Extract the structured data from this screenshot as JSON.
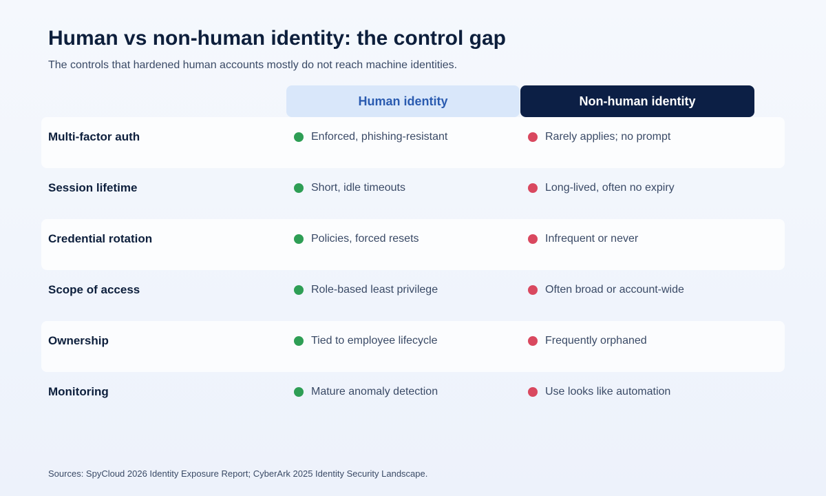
{
  "title": "Human vs non-human identity: the control gap",
  "subtitle": "The controls that hardened human accounts mostly do not reach machine identities.",
  "columns": {
    "human": "Human identity",
    "nonhuman": "Non-human identity"
  },
  "colors": {
    "good_dot": "#2e9e55",
    "bad_dot": "#d9485f",
    "human_header_bg": "#d9e7fa",
    "human_header_text": "#2a5bb0",
    "nonhuman_header_bg": "#0c1f45",
    "nonhuman_header_text": "#ffffff"
  },
  "rows": [
    {
      "label": "Multi-factor auth",
      "human": "Enforced, phishing-resistant",
      "nonhuman": "Rarely applies; no prompt"
    },
    {
      "label": "Session lifetime",
      "human": "Short, idle timeouts",
      "nonhuman": "Long-lived, often no expiry"
    },
    {
      "label": "Credential rotation",
      "human": "Policies, forced resets",
      "nonhuman": "Infrequent or never"
    },
    {
      "label": "Scope of access",
      "human": "Role-based least privilege",
      "nonhuman": "Often broad or account-wide"
    },
    {
      "label": "Ownership",
      "human": "Tied to employee lifecycle",
      "nonhuman": "Frequently orphaned"
    },
    {
      "label": "Monitoring",
      "human": "Mature anomaly detection",
      "nonhuman": "Use looks like automation"
    }
  ],
  "sources": "Sources: SpyCloud 2026 Identity Exposure Report; CyberArk 2025 Identity Security Landscape."
}
